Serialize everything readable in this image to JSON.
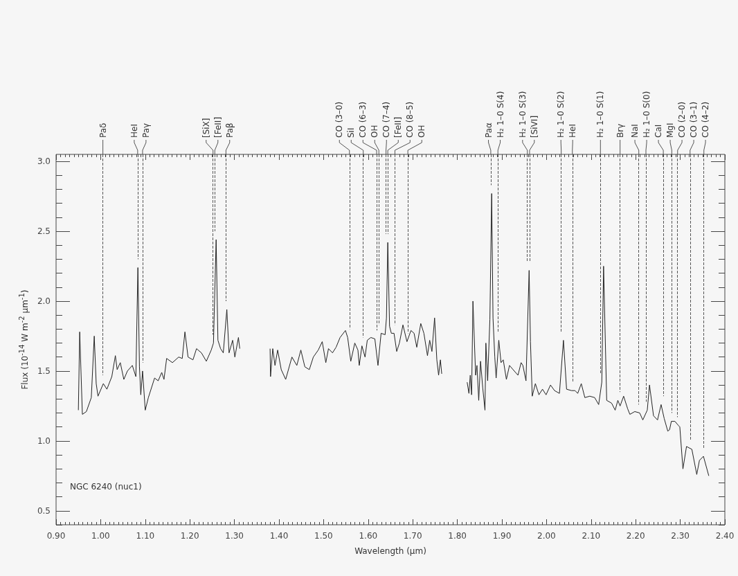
{
  "chart_data": {
    "type": "line",
    "xlabel": "Wavelength (μm)",
    "ylabel": "Flux (10$^{-14}$ W m$^{-2}$ μm$^{-1}$)",
    "annotations": [
      "NGC 6240 (nuc1)"
    ],
    "color": "#222222",
    "xlim": [
      0.9,
      2.4
    ],
    "ylim": [
      0.4,
      3.05
    ],
    "xticks": [
      {
        "value": 0.9,
        "label": "0.90"
      },
      {
        "value": 1.0,
        "label": "1.00"
      },
      {
        "value": 1.1,
        "label": "1.10"
      },
      {
        "value": 1.2,
        "label": "1.20"
      },
      {
        "value": 1.3,
        "label": "1.30"
      },
      {
        "value": 1.4,
        "label": "1.40"
      },
      {
        "value": 1.5,
        "label": "1.50"
      },
      {
        "value": 1.6,
        "label": "1.60"
      },
      {
        "value": 1.7,
        "label": "1.70"
      },
      {
        "value": 1.8,
        "label": "1.80"
      },
      {
        "value": 1.9,
        "label": "1.90"
      },
      {
        "value": 2.0,
        "label": "2.00"
      },
      {
        "value": 2.1,
        "label": "2.10"
      },
      {
        "value": 2.2,
        "label": "2.20"
      },
      {
        "value": 2.3,
        "label": "2.30"
      },
      {
        "value": 2.4,
        "label": "2.40"
      }
    ],
    "yticks": [
      {
        "value": 0.5,
        "label": "0.5"
      },
      {
        "value": 1.0,
        "label": "1.0"
      },
      {
        "value": 1.5,
        "label": "1.5"
      },
      {
        "value": 2.0,
        "label": "2.0"
      },
      {
        "value": 2.5,
        "label": "2.5"
      },
      {
        "value": 3.0,
        "label": "3.0"
      }
    ],
    "grid": false,
    "x": [
      0.95,
      0.953,
      0.959,
      0.968,
      0.979,
      0.9856,
      0.99,
      0.994,
      1.006,
      1.014,
      1.025,
      1.033,
      1.037,
      1.044,
      1.052,
      1.06,
      1.071,
      1.079,
      1.0835,
      1.087,
      1.09,
      1.094,
      1.1,
      1.107,
      1.121,
      1.129,
      1.137,
      1.142,
      1.148,
      1.161,
      1.175,
      1.183,
      1.189,
      1.196,
      1.207,
      1.215,
      1.226,
      1.237,
      1.248,
      1.253,
      1.259,
      1.263,
      1.269,
      1.275,
      1.283,
      1.288,
      1.296,
      1.301,
      1.309,
      1.312,
      1.35,
      1.38,
      1.381,
      1.386,
      1.391,
      1.397,
      1.405,
      1.415,
      1.429,
      1.44,
      1.449,
      1.458,
      1.468,
      1.477,
      1.488,
      1.497,
      1.505,
      1.511,
      1.52,
      1.528,
      1.537,
      1.549,
      1.554,
      1.561,
      1.57,
      1.577,
      1.58,
      1.586,
      1.593,
      1.598,
      1.606,
      1.615,
      1.622,
      1.629,
      1.638,
      1.641,
      1.644,
      1.648,
      1.652,
      1.658,
      1.664,
      1.67,
      1.678,
      1.687,
      1.696,
      1.703,
      1.709,
      1.718,
      1.725,
      1.733,
      1.738,
      1.743,
      1.749,
      1.754,
      1.758,
      1.762,
      1.765,
      1.8,
      1.822,
      1.826,
      1.829,
      1.832,
      1.835,
      1.841,
      1.844,
      1.848,
      1.852,
      1.857,
      1.862,
      1.864,
      1.868,
      1.873,
      1.877,
      1.88,
      1.884,
      1.887,
      1.893,
      1.898,
      1.903,
      1.91,
      1.917,
      1.925,
      1.936,
      1.943,
      1.947,
      1.954,
      1.961,
      1.964,
      1.968,
      1.975,
      1.983,
      1.991,
      1.999,
      2.009,
      2.018,
      2.029,
      2.038,
      2.045,
      2.056,
      2.064,
      2.07,
      2.078,
      2.086,
      2.097,
      2.108,
      2.117,
      2.124,
      2.128,
      2.135,
      2.146,
      2.154,
      2.16,
      2.165,
      2.173,
      2.182,
      2.187,
      2.198,
      2.209,
      2.216,
      2.226,
      2.231,
      2.24,
      2.249,
      2.257,
      2.264,
      2.272,
      2.276,
      2.28,
      2.288,
      2.296,
      2.299,
      2.306,
      2.314,
      2.326,
      2.337,
      2.343,
      2.352,
      2.364
    ],
    "values": [
      1.22,
      1.78,
      1.19,
      1.21,
      1.31,
      1.75,
      1.41,
      1.32,
      1.41,
      1.37,
      1.46,
      1.61,
      1.51,
      1.56,
      1.44,
      1.5,
      1.54,
      1.46,
      2.24,
      1.53,
      1.33,
      1.5,
      1.22,
      1.31,
      1.45,
      1.43,
      1.49,
      1.44,
      1.59,
      1.56,
      1.6,
      1.59,
      1.78,
      1.6,
      1.58,
      1.66,
      1.63,
      1.57,
      1.65,
      1.7,
      2.44,
      1.72,
      1.66,
      1.63,
      1.94,
      1.63,
      1.72,
      1.6,
      1.74,
      1.66,
      null,
      1.66,
      1.46,
      1.66,
      1.54,
      1.65,
      1.51,
      1.44,
      1.6,
      1.54,
      1.65,
      1.53,
      1.51,
      1.6,
      1.65,
      1.71,
      1.56,
      1.66,
      1.63,
      1.67,
      1.74,
      1.79,
      1.74,
      1.57,
      1.7,
      1.65,
      1.54,
      1.68,
      1.6,
      1.72,
      1.74,
      1.73,
      1.54,
      1.77,
      1.76,
      1.88,
      2.42,
      1.82,
      1.77,
      1.77,
      1.64,
      1.7,
      1.83,
      1.71,
      1.79,
      1.77,
      1.67,
      1.84,
      1.77,
      1.61,
      1.72,
      1.64,
      1.88,
      1.58,
      1.47,
      1.58,
      1.48,
      null,
      1.42,
      1.34,
      1.47,
      1.33,
      2.0,
      1.47,
      1.54,
      1.29,
      1.57,
      1.38,
      1.22,
      1.7,
      1.43,
      1.87,
      2.77,
      1.88,
      1.6,
      1.45,
      1.72,
      1.56,
      1.58,
      1.44,
      1.54,
      1.51,
      1.47,
      1.56,
      1.54,
      1.43,
      2.22,
      1.71,
      1.32,
      1.41,
      1.33,
      1.37,
      1.33,
      1.4,
      1.36,
      1.34,
      1.72,
      1.37,
      1.36,
      1.36,
      1.34,
      1.41,
      1.31,
      1.32,
      1.31,
      1.26,
      1.42,
      2.25,
      1.29,
      1.27,
      1.22,
      1.29,
      1.25,
      1.32,
      1.23,
      1.19,
      1.21,
      1.2,
      1.15,
      1.22,
      1.4,
      1.18,
      1.15,
      1.26,
      1.16,
      1.07,
      1.08,
      1.14,
      1.14,
      1.11,
      1.1,
      0.8,
      0.96,
      0.94,
      0.76,
      0.86,
      0.89,
      0.75
    ],
    "ref_lines": [
      {
        "axis": "x",
        "value": 1.005,
        "label": "Paδ",
        "line_style": "dashed",
        "color": "#555555"
      },
      {
        "axis": "x",
        "value": 1.083,
        "label": "HeI",
        "line_style": "dashed",
        "color": "#555555"
      },
      {
        "axis": "x",
        "value": 1.094,
        "label": "Paγ",
        "line_style": "dashed",
        "color": "#555555"
      },
      {
        "axis": "x",
        "value": 1.252,
        "label": "[SiX]",
        "line_style": "dashed",
        "color": "#555555"
      },
      {
        "axis": "x",
        "value": 1.256,
        "label": "[FeII]",
        "line_style": "dashed",
        "color": "#555555"
      },
      {
        "axis": "x",
        "value": 1.281,
        "label": "Paβ",
        "line_style": "dashed",
        "color": "#555555"
      },
      {
        "axis": "x",
        "value": 1.558,
        "label": "CO (3–0)",
        "line_style": "dashed",
        "color": "#555555"
      },
      {
        "axis": "x",
        "value": 1.589,
        "label": "SiI",
        "line_style": "dashed",
        "color": "#555555"
      },
      {
        "axis": "x",
        "value": 1.619,
        "label": "CO (6–3)",
        "line_style": "dashed",
        "color": "#555555"
      },
      {
        "axis": "x",
        "value": 1.624,
        "label": "OH",
        "line_style": "dashed",
        "color": "#555555"
      },
      {
        "axis": "x",
        "value": 1.64,
        "label": "CO (7–4)",
        "line_style": "dashed",
        "color": "#555555"
      },
      {
        "axis": "x",
        "value": 1.644,
        "label": "[FeII]",
        "line_style": "dashed",
        "color": "#555555"
      },
      {
        "axis": "x",
        "value": 1.66,
        "label": "CO (8–5)",
        "line_style": "dashed",
        "color": "#555555"
      },
      {
        "axis": "x",
        "value": 1.689,
        "label": "OH",
        "line_style": "dashed",
        "color": "#555555"
      },
      {
        "axis": "x",
        "value": 1.875,
        "label": "Paα",
        "line_style": "dashed",
        "color": "#555555"
      },
      {
        "axis": "x",
        "value": 1.891,
        "label": "H₂ 1–0 S(4)",
        "line_style": "dashed",
        "color": "#555555"
      },
      {
        "axis": "x",
        "value": 1.957,
        "label": "H₂ 1–0 S(3)",
        "line_style": "dashed",
        "color": "#555555"
      },
      {
        "axis": "x",
        "value": 1.962,
        "label": "[SiVI]",
        "line_style": "dashed",
        "color": "#555555"
      },
      {
        "axis": "x",
        "value": 2.033,
        "label": "H₂ 1–0 S(2)",
        "line_style": "dashed",
        "color": "#555555"
      },
      {
        "axis": "x",
        "value": 2.058,
        "label": "HeI",
        "line_style": "dashed",
        "color": "#555555"
      },
      {
        "axis": "x",
        "value": 2.121,
        "label": "H₂ 1–0 S(1)",
        "line_style": "dashed",
        "color": "#555555"
      },
      {
        "axis": "x",
        "value": 2.165,
        "label": "Brγ",
        "line_style": "dashed",
        "color": "#555555"
      },
      {
        "axis": "x",
        "value": 2.207,
        "label": "NaI",
        "line_style": "dashed",
        "color": "#555555"
      },
      {
        "axis": "x",
        "value": 2.223,
        "label": "H₂ 1–0 S(0)",
        "line_style": "dashed",
        "color": "#555555"
      },
      {
        "axis": "x",
        "value": 2.262,
        "label": "CaI",
        "line_style": "dashed",
        "color": "#555555"
      },
      {
        "axis": "x",
        "value": 2.281,
        "label": "MgI",
        "line_style": "dashed",
        "color": "#555555"
      },
      {
        "axis": "x",
        "value": 2.294,
        "label": "CO (2–0)",
        "line_style": "dashed",
        "color": "#555555"
      },
      {
        "axis": "x",
        "value": 2.322,
        "label": "CO (3–1)",
        "line_style": "dashed",
        "color": "#555555"
      },
      {
        "axis": "x",
        "value": 2.353,
        "label": "CO (4–2)",
        "line_style": "dashed",
        "color": "#555555"
      }
    ]
  }
}
